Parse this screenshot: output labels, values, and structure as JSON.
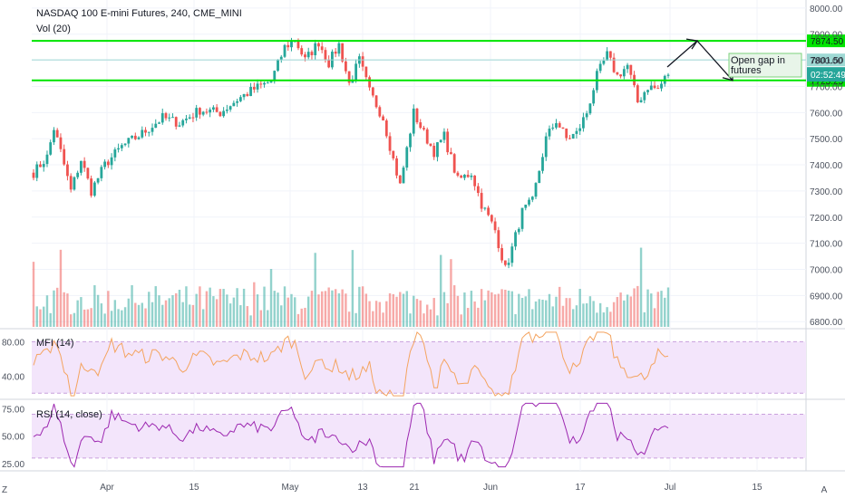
{
  "chart_data": {
    "type": "candlestick",
    "title": "NASDAQ 100 E-mini Futures, 240, CME_MINI",
    "volume_label": "Vol (20)",
    "x_ticks": [
      "Apr",
      "15",
      "May",
      "13",
      "21",
      "Jun",
      "17",
      "Jul",
      "15",
      "A"
    ],
    "corner_left": "Z",
    "price_axis": {
      "ticks": [
        6800,
        6900,
        7000,
        7100,
        7200,
        7300,
        7400,
        7500,
        7600,
        7700,
        7800,
        7900,
        8000
      ],
      "tick_labels": [
        "6800.00",
        "6900.00",
        "7000.00",
        "7100.00",
        "7200.00",
        "7300.00",
        "7400.00",
        "7500.00",
        "7600.00",
        "7700.00",
        "7800.00",
        "7900.00",
        "8000.00"
      ],
      "range": [
        6780,
        8010
      ]
    },
    "price_path": [
      [
        0,
        7370
      ],
      [
        4,
        7430
      ],
      [
        6,
        7540
      ],
      [
        8,
        7450
      ],
      [
        11,
        7300
      ],
      [
        14,
        7420
      ],
      [
        17,
        7300
      ],
      [
        21,
        7400
      ],
      [
        26,
        7470
      ],
      [
        32,
        7520
      ],
      [
        38,
        7580
      ],
      [
        43,
        7560
      ],
      [
        49,
        7610
      ],
      [
        55,
        7600
      ],
      [
        60,
        7650
      ],
      [
        65,
        7690
      ],
      [
        70,
        7720
      ],
      [
        74,
        7850
      ],
      [
        77,
        7880
      ],
      [
        80,
        7800
      ],
      [
        84,
        7870
      ],
      [
        87,
        7790
      ],
      [
        90,
        7860
      ],
      [
        93,
        7710
      ],
      [
        96,
        7800
      ],
      [
        99,
        7680
      ],
      [
        103,
        7580
      ],
      [
        106,
        7420
      ],
      [
        108,
        7320
      ],
      [
        112,
        7600
      ],
      [
        115,
        7520
      ],
      [
        118,
        7450
      ],
      [
        121,
        7510
      ],
      [
        125,
        7340
      ],
      [
        129,
        7370
      ],
      [
        132,
        7250
      ],
      [
        136,
        7150
      ],
      [
        139,
        7000
      ],
      [
        141,
        7080
      ],
      [
        144,
        7220
      ],
      [
        147,
        7260
      ],
      [
        151,
        7500
      ],
      [
        154,
        7570
      ],
      [
        157,
        7500
      ],
      [
        160,
        7520
      ],
      [
        163,
        7600
      ],
      [
        166,
        7740
      ],
      [
        169,
        7820
      ],
      [
        172,
        7740
      ],
      [
        175,
        7780
      ],
      [
        178,
        7640
      ],
      [
        181,
        7700
      ],
      [
        184,
        7690
      ],
      [
        186,
        7730
      ],
      [
        187,
        7750
      ]
    ],
    "volume_level": 0.35,
    "horizontal_lines": [
      {
        "value": 7874.5,
        "label": "7874.50",
        "color": "#00e500"
      },
      {
        "value": 7801.5,
        "label": "7801.50",
        "color": "#9fd9d4"
      },
      {
        "value": 7723.25,
        "label": "7723.25",
        "color": "#00e500"
      }
    ],
    "last_price": {
      "label": "7801.50",
      "countdown": "02:52:49",
      "color": "#26a69a"
    },
    "annotation": "Open gap in futures",
    "indicators": [
      {
        "name": "MFI (14)",
        "ticks": [
          80,
          40
        ],
        "tick_labels": [
          "80.00",
          "40.00"
        ],
        "range": [
          15,
          93
        ],
        "bands": [
          80,
          20
        ],
        "color": "#f4a460",
        "fill": "#f3e5fb"
      },
      {
        "name": "RSI (14, close)",
        "ticks": [
          75,
          50,
          25
        ],
        "tick_labels": [
          "75.00",
          "50.00",
          "25.00"
        ],
        "range": [
          20,
          82
        ],
        "bands": [
          70,
          30
        ],
        "color": "#9c27b0",
        "fill": "#f3e5fb"
      }
    ],
    "colors": {
      "up": "#26a69a",
      "down": "#ef5350",
      "grid": "#f0f3fa"
    }
  }
}
